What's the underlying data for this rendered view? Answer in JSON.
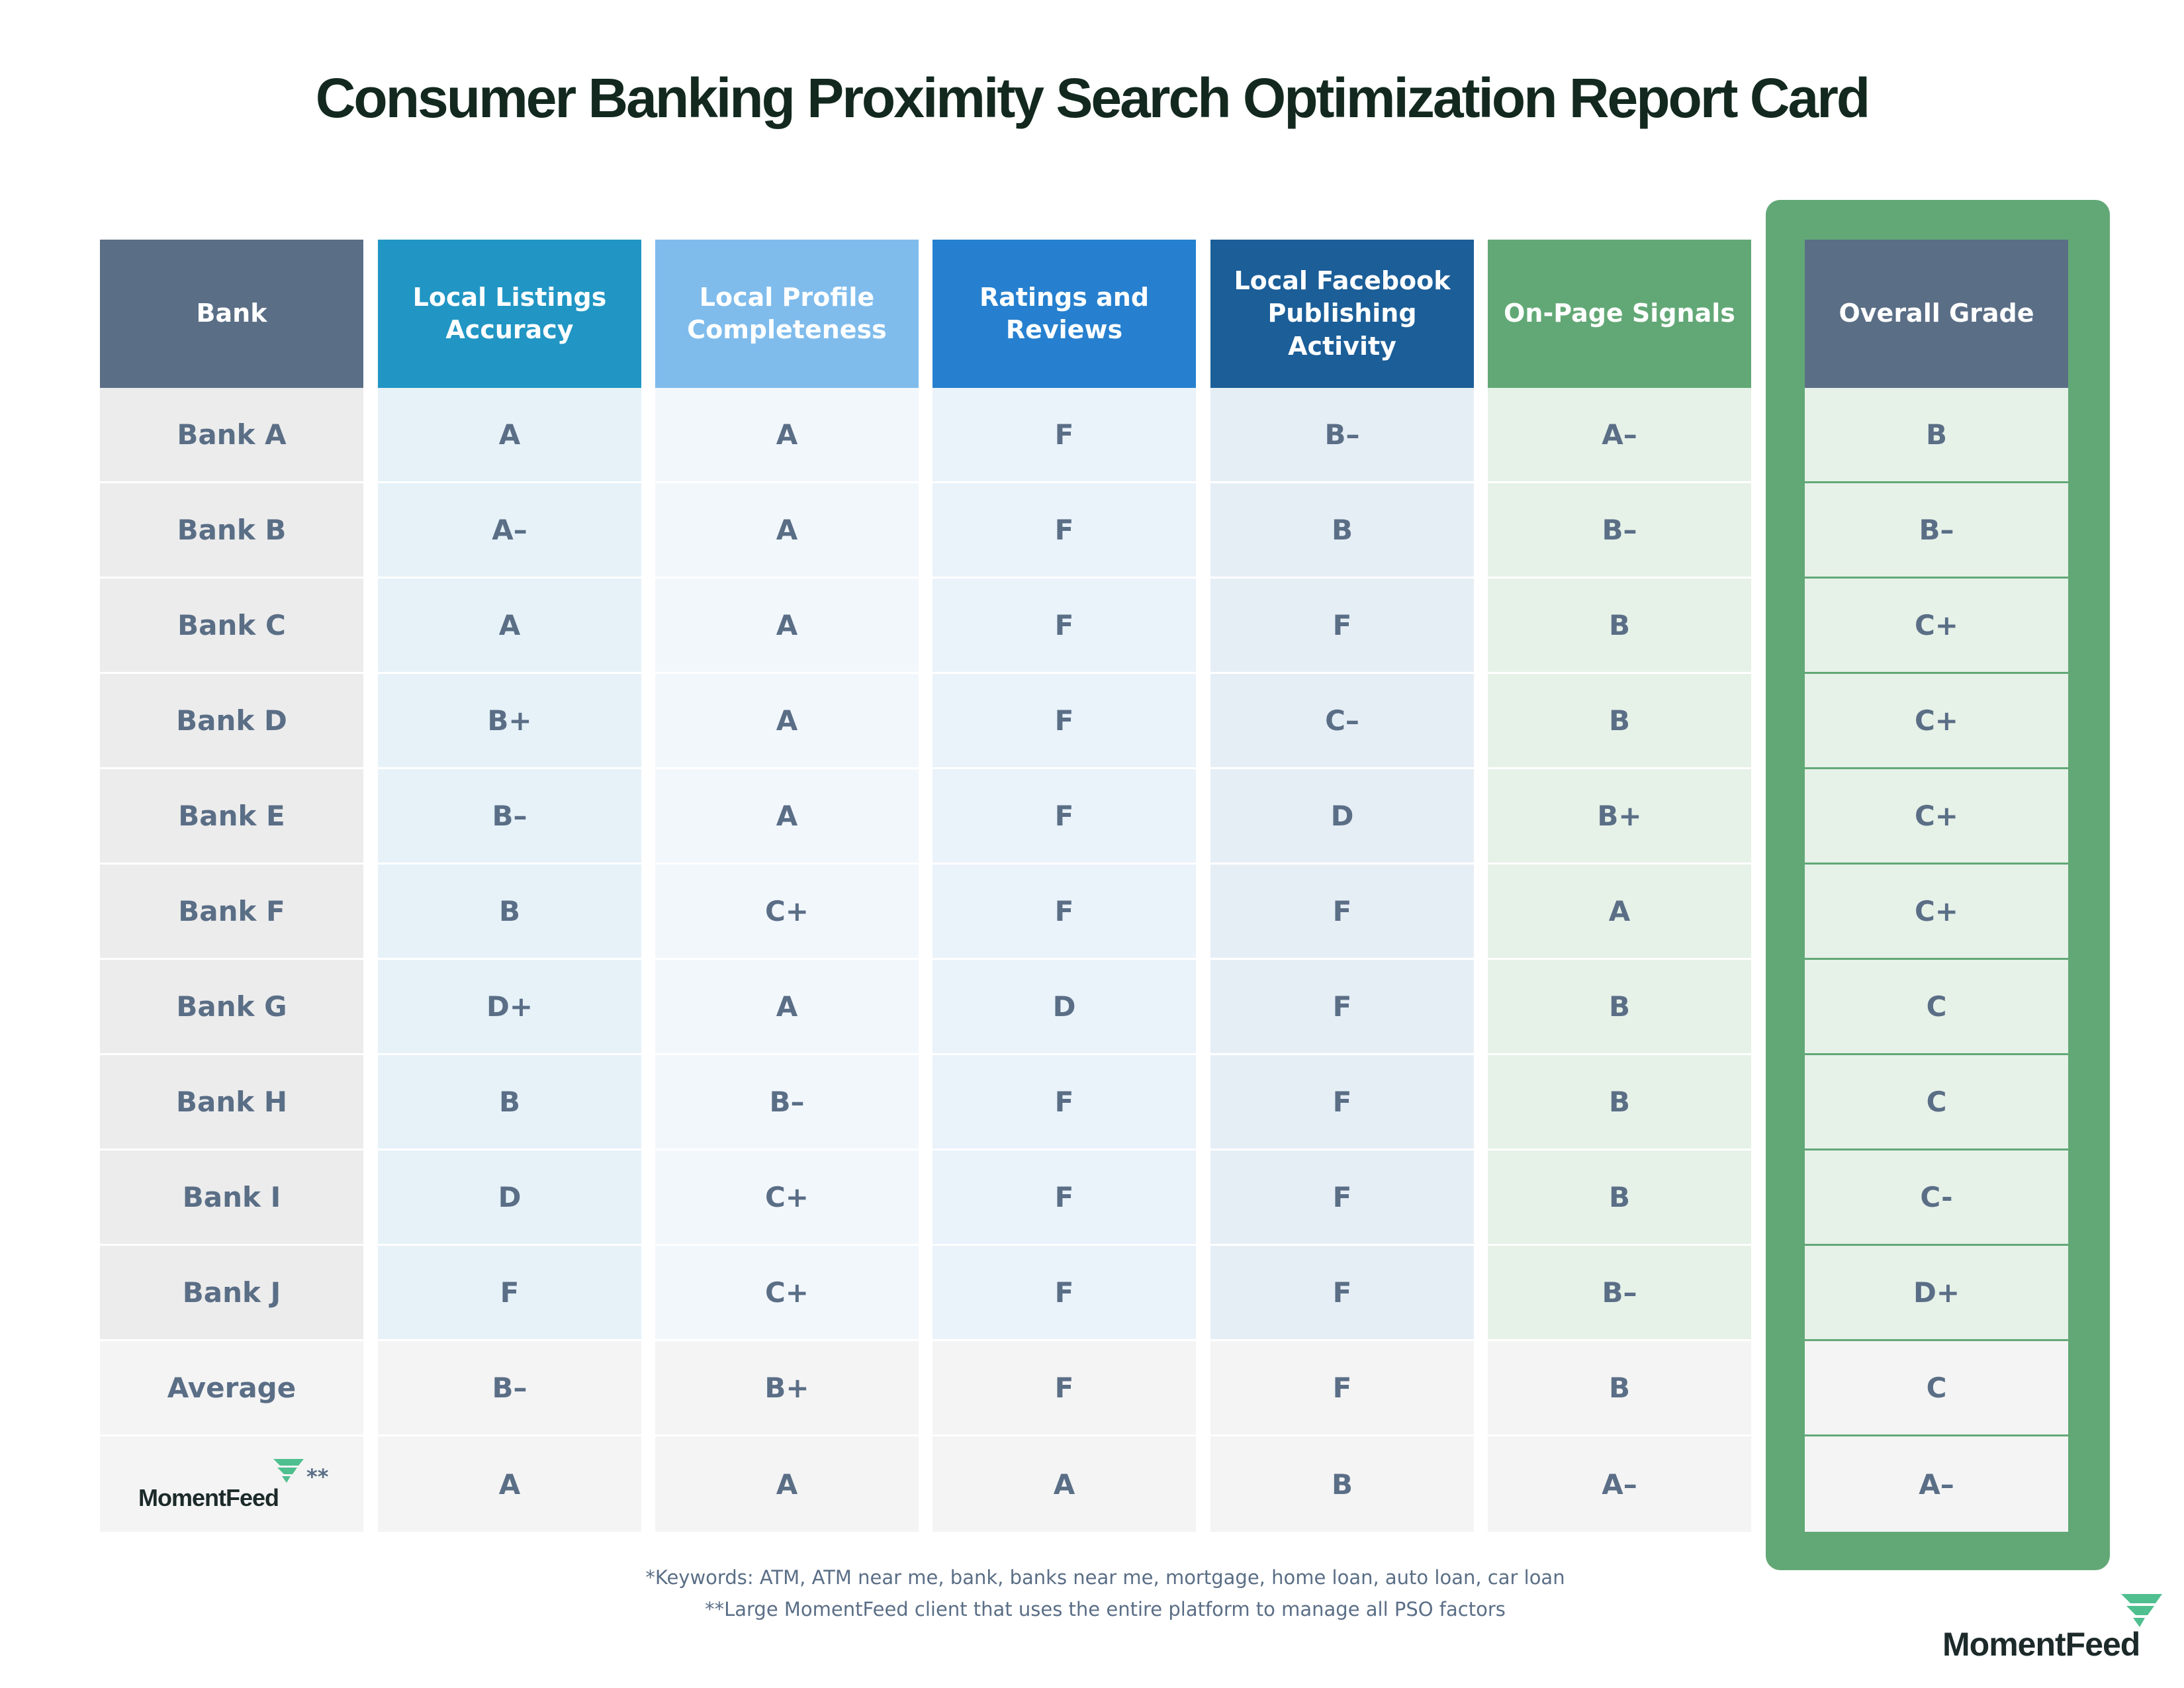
{
  "header": {
    "title": "Consumer Banking Proximity Search Optimization Report Card"
  },
  "table": {
    "headers": [
      "Bank",
      "Local Listings Accuracy",
      "Local Profile Completeness",
      "Ratings and Reviews",
      "Local Facebook Publishing Activity",
      "On-Page Signals",
      "Overall Grade"
    ],
    "rows": [
      [
        "Bank A",
        "A",
        "A",
        "F",
        "B–",
        "A–",
        "B"
      ],
      [
        "Bank B",
        "A–",
        "A",
        "F",
        "B",
        "B–",
        "B–"
      ],
      [
        "Bank C",
        "A",
        "A",
        "F",
        "F",
        "B",
        "C+"
      ],
      [
        "Bank D",
        "B+",
        "A",
        "F",
        "C–",
        "B",
        "C+"
      ],
      [
        "Bank E",
        "B–",
        "A",
        "F",
        "D",
        "B+",
        "C+"
      ],
      [
        "Bank F",
        "B",
        "C+",
        "F",
        "F",
        "A",
        "C+"
      ],
      [
        "Bank G",
        "D+",
        "A",
        "D",
        "F",
        "B",
        "C"
      ],
      [
        "Bank H",
        "B",
        "B–",
        "F",
        "F",
        "B",
        "C"
      ],
      [
        "Bank I",
        "D",
        "C+",
        "F",
        "F",
        "B",
        "C-"
      ],
      [
        "Bank J",
        "F",
        "C+",
        "F",
        "F",
        "B–",
        "D+"
      ],
      [
        "Average",
        "B–",
        "B+",
        "F",
        "F",
        "B",
        "C"
      ]
    ],
    "client_row": {
      "name": "MomentFeed",
      "marker": "**",
      "grades": [
        "A",
        "A",
        "A",
        "B",
        "A–",
        "A–"
      ]
    }
  },
  "footnotes": [
    "*Keywords: ATM, ATM near me, bank, banks near me, mortgage, home loan, auto loan, car loan",
    "**Large MomentFeed client that uses the entire platform to manage all PSO factors"
  ],
  "brand": "MomentFeed"
}
